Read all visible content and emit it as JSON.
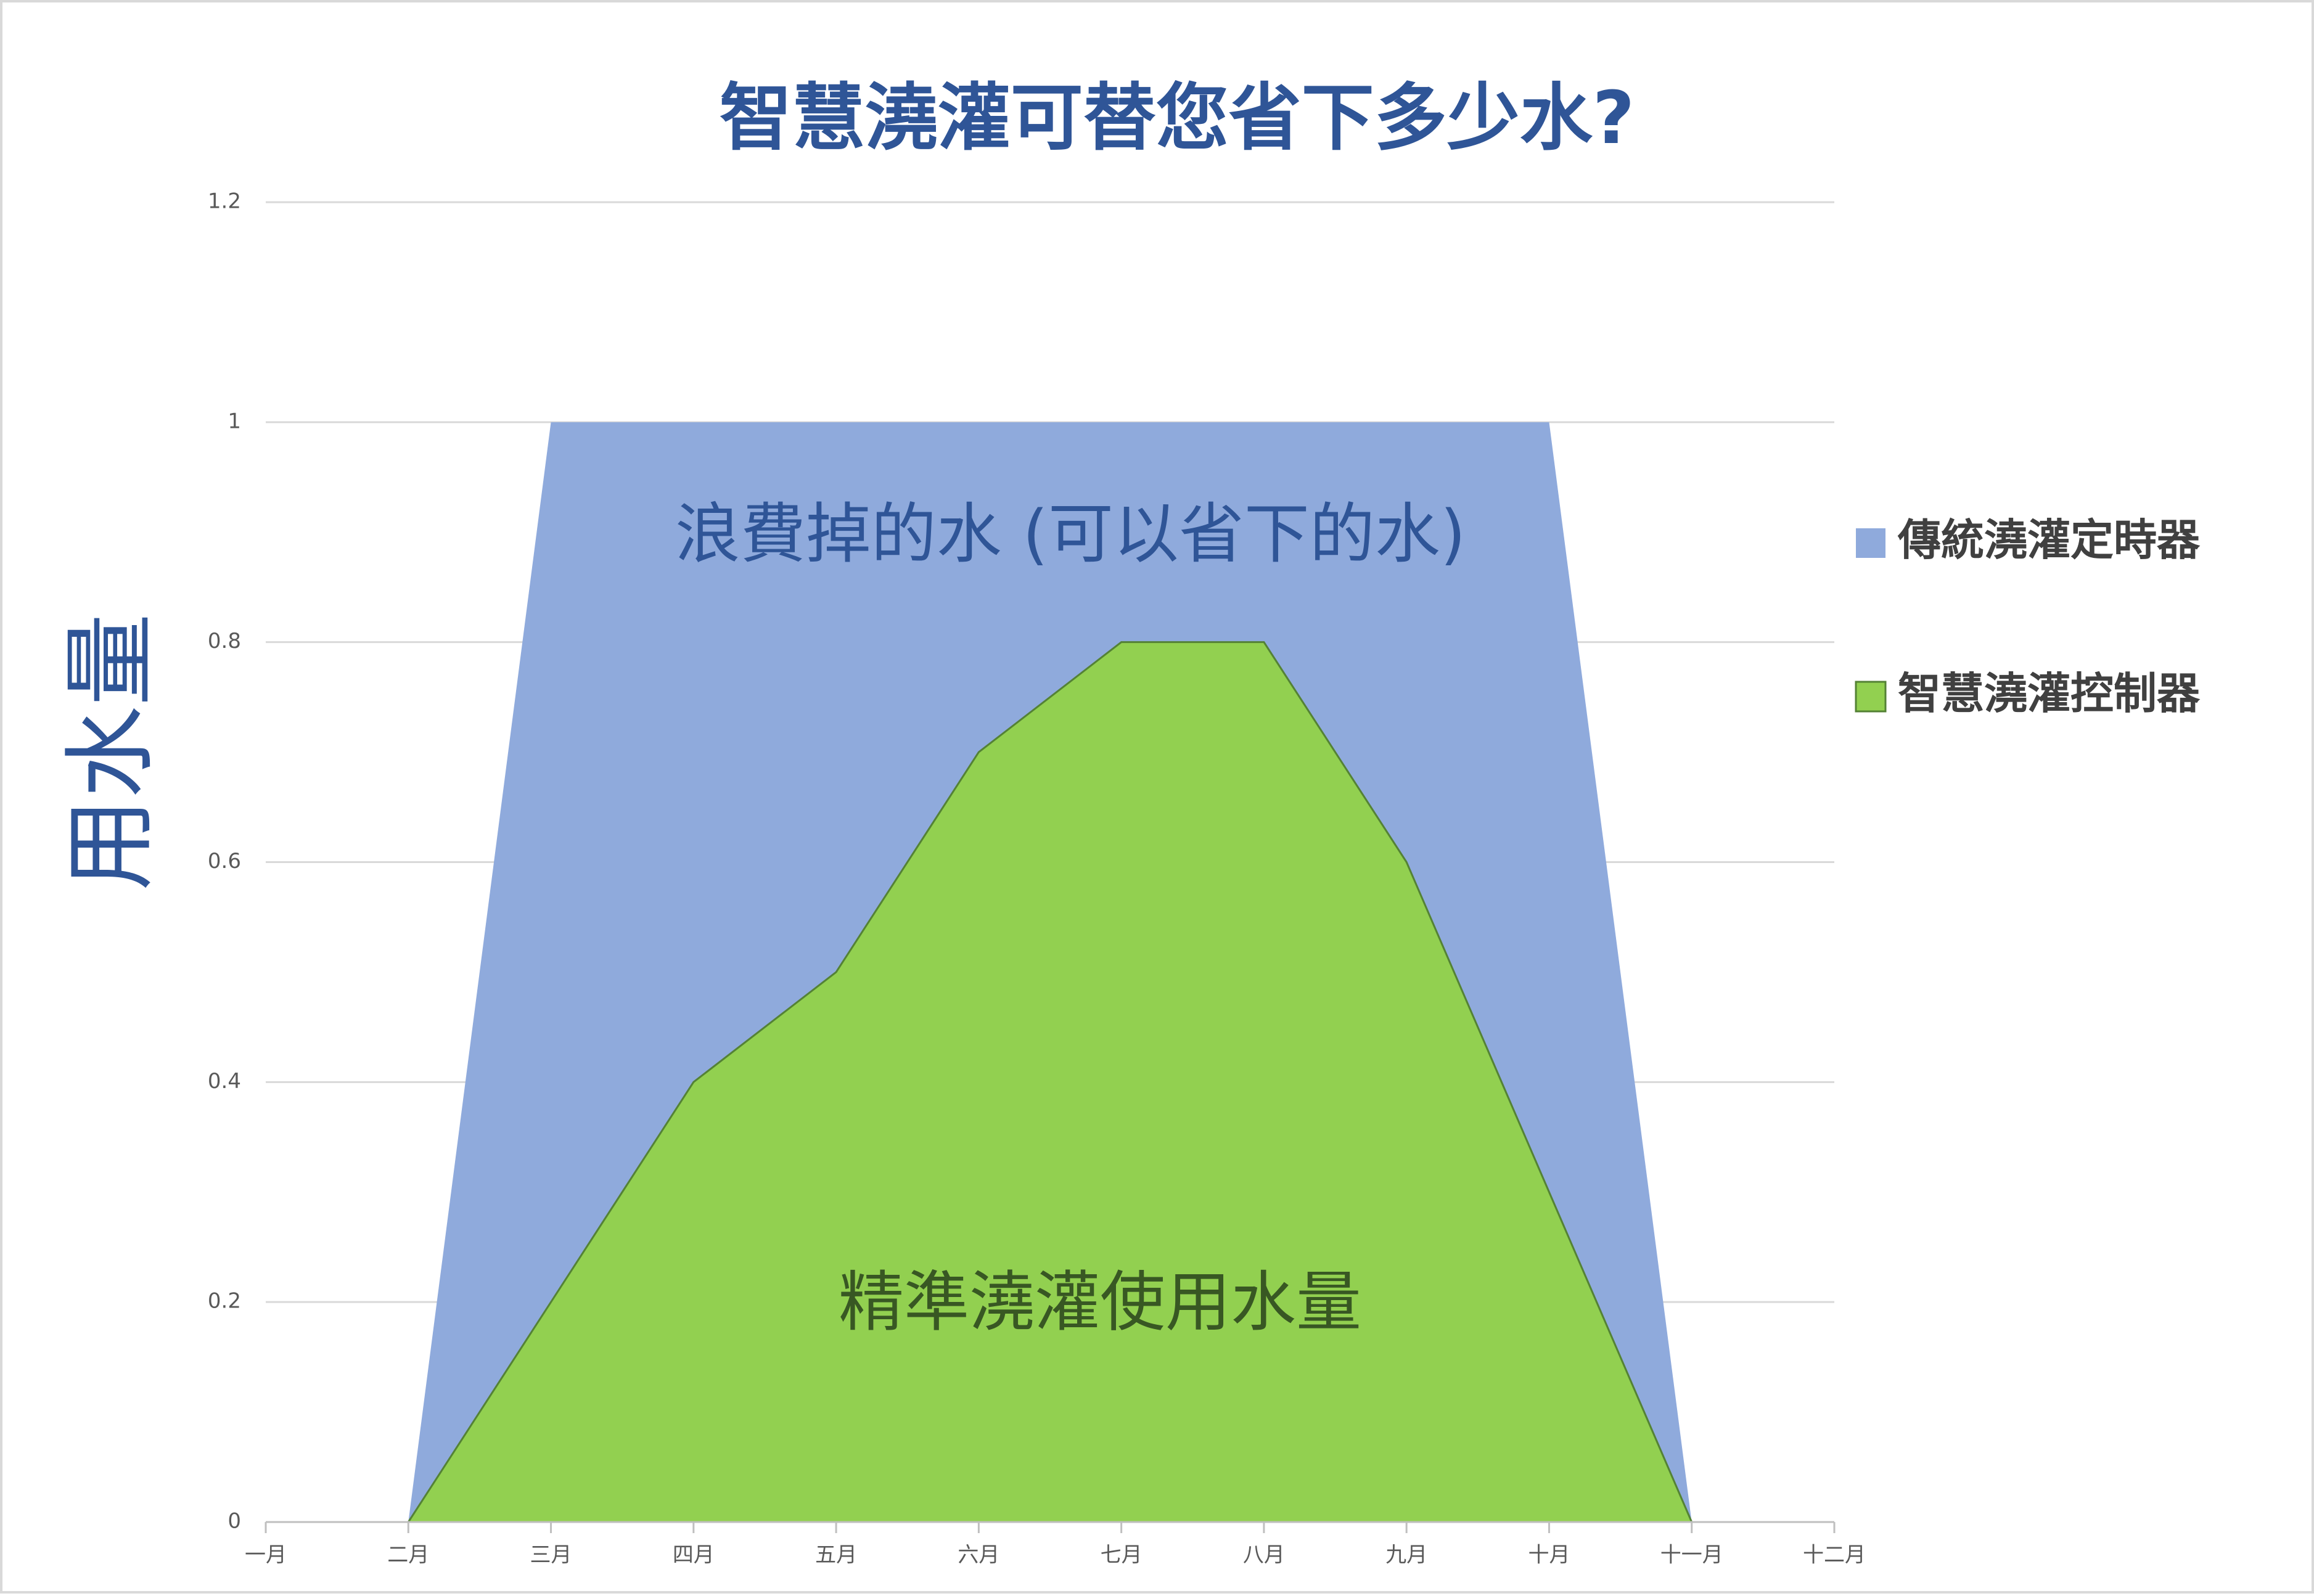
{
  "chart_data": {
    "type": "area",
    "title": "智慧澆灌可替您省下多少水?",
    "y_label": "用水量",
    "categories": [
      "一月",
      "二月",
      "三月",
      "四月",
      "五月",
      "六月",
      "七月",
      "八月",
      "九月",
      "十月",
      "十一月",
      "十二月"
    ],
    "series": [
      {
        "name": "傳統澆灌定時器",
        "color": "#8faadc",
        "values": [
          null,
          0,
          1,
          1,
          1,
          1,
          1,
          1,
          1,
          1,
          0,
          null
        ]
      },
      {
        "name": "智慧澆灌控制器",
        "color": "#92d050",
        "values": [
          null,
          0,
          0.2,
          0.4,
          0.5,
          0.7,
          0.8,
          0.8,
          0.6,
          0.3,
          0,
          null
        ]
      }
    ],
    "annotations": [
      "浪費掉的水 (可以省下的水)",
      "精準澆灌使用水量"
    ],
    "ylim": [
      0,
      1.2
    ],
    "yticks": [
      0,
      0.2,
      0.4,
      0.6,
      0.8,
      1,
      1.2
    ],
    "grid": true,
    "legend": "right"
  }
}
